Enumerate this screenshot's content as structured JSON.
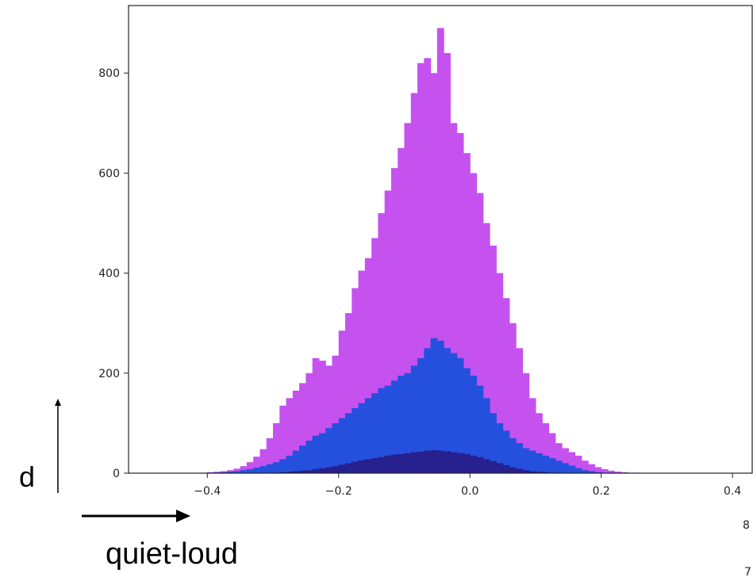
{
  "chart_data": {
    "type": "bar",
    "title": "",
    "xlabel": "",
    "ylabel": "",
    "xlim": [
      -0.52,
      0.43
    ],
    "ylim": [
      0,
      935
    ],
    "x_ticks": [
      {
        "value": -0.4,
        "label": "−0.4"
      },
      {
        "value": -0.2,
        "label": "−0.2"
      },
      {
        "value": 0.0,
        "label": "0.0"
      },
      {
        "value": 0.2,
        "label": "0.2"
      },
      {
        "value": 0.4,
        "label": "0.4"
      }
    ],
    "y_ticks": [
      {
        "value": 0,
        "label": "0"
      },
      {
        "value": 200,
        "label": "200"
      },
      {
        "value": 400,
        "label": "400"
      },
      {
        "value": 600,
        "label": "600"
      },
      {
        "value": 800,
        "label": "800"
      }
    ],
    "grid": false,
    "legend": "none",
    "series": [
      {
        "color": "#c552ef",
        "bin_edges": [
          -0.45,
          -0.44,
          -0.43,
          -0.42,
          -0.41,
          -0.4,
          -0.39,
          -0.38,
          -0.37,
          -0.36,
          -0.35,
          -0.34,
          -0.33,
          -0.32,
          -0.31,
          -0.3,
          -0.29,
          -0.28,
          -0.27,
          -0.26,
          -0.25,
          -0.24,
          -0.23,
          -0.22,
          -0.21,
          -0.2,
          -0.19,
          -0.18,
          -0.17,
          -0.16,
          -0.15,
          -0.14,
          -0.13,
          -0.12,
          -0.11,
          -0.1,
          -0.09,
          -0.08,
          -0.07,
          -0.06,
          -0.05,
          -0.04,
          -0.03,
          -0.02,
          -0.01,
          0.0,
          0.01,
          0.02,
          0.03,
          0.04,
          0.05,
          0.06,
          0.07,
          0.08,
          0.09,
          0.1,
          0.11,
          0.12,
          0.13,
          0.14,
          0.15,
          0.16,
          0.17,
          0.18,
          0.19,
          0.2,
          0.21,
          0.22,
          0.23,
          0.24,
          0.25,
          0.26,
          0.27,
          0.28,
          0.29,
          0.3,
          0.31,
          0.32,
          0.33,
          0.34,
          0.35
        ],
        "values": [
          0,
          0,
          0,
          0,
          1,
          2,
          3,
          4,
          6,
          9,
          14,
          22,
          33,
          48,
          70,
          100,
          135,
          150,
          165,
          180,
          200,
          230,
          225,
          215,
          235,
          285,
          320,
          370,
          405,
          430,
          470,
          520,
          565,
          610,
          650,
          700,
          760,
          820,
          830,
          800,
          890,
          840,
          700,
          680,
          640,
          600,
          560,
          500,
          455,
          400,
          350,
          300,
          250,
          200,
          150,
          120,
          100,
          80,
          60,
          50,
          42,
          35,
          25,
          18,
          12,
          8,
          5,
          3,
          2,
          1,
          1,
          0,
          0,
          0,
          0,
          0,
          0,
          0,
          0,
          0
        ]
      },
      {
        "color": "#2550de",
        "bin_edges": [
          -0.45,
          -0.44,
          -0.43,
          -0.42,
          -0.41,
          -0.4,
          -0.39,
          -0.38,
          -0.37,
          -0.36,
          -0.35,
          -0.34,
          -0.33,
          -0.32,
          -0.31,
          -0.3,
          -0.29,
          -0.28,
          -0.27,
          -0.26,
          -0.25,
          -0.24,
          -0.23,
          -0.22,
          -0.21,
          -0.2,
          -0.19,
          -0.18,
          -0.17,
          -0.16,
          -0.15,
          -0.14,
          -0.13,
          -0.12,
          -0.11,
          -0.1,
          -0.09,
          -0.08,
          -0.07,
          -0.06,
          -0.05,
          -0.04,
          -0.03,
          -0.02,
          -0.01,
          0.0,
          0.01,
          0.02,
          0.03,
          0.04,
          0.05,
          0.06,
          0.07,
          0.08,
          0.09,
          0.1,
          0.11,
          0.12,
          0.13,
          0.14,
          0.15,
          0.16,
          0.17,
          0.18,
          0.19,
          0.2,
          0.21,
          0.22,
          0.23,
          0.24,
          0.25,
          0.26,
          0.27,
          0.28,
          0.29,
          0.3,
          0.31,
          0.32,
          0.33,
          0.34,
          0.35
        ],
        "values": [
          0,
          0,
          0,
          0,
          0,
          1,
          1,
          2,
          3,
          4,
          6,
          8,
          11,
          14,
          18,
          22,
          28,
          35,
          45,
          55,
          65,
          75,
          80,
          90,
          100,
          110,
          120,
          130,
          140,
          150,
          160,
          170,
          175,
          185,
          195,
          200,
          215,
          230,
          250,
          270,
          265,
          250,
          240,
          230,
          210,
          195,
          175,
          150,
          120,
          100,
          85,
          70,
          60,
          50,
          45,
          40,
          35,
          30,
          25,
          20,
          15,
          10,
          6,
          4,
          2,
          1,
          1,
          0,
          0,
          0,
          0,
          0,
          0,
          0,
          0,
          0,
          0,
          0,
          0,
          0
        ]
      },
      {
        "color": "#27208f",
        "bin_edges": [
          -0.45,
          -0.44,
          -0.43,
          -0.42,
          -0.41,
          -0.4,
          -0.39,
          -0.38,
          -0.37,
          -0.36,
          -0.35,
          -0.34,
          -0.33,
          -0.32,
          -0.31,
          -0.3,
          -0.29,
          -0.28,
          -0.27,
          -0.26,
          -0.25,
          -0.24,
          -0.23,
          -0.22,
          -0.21,
          -0.2,
          -0.19,
          -0.18,
          -0.17,
          -0.16,
          -0.15,
          -0.14,
          -0.13,
          -0.12,
          -0.11,
          -0.1,
          -0.09,
          -0.08,
          -0.07,
          -0.06,
          -0.05,
          -0.04,
          -0.03,
          -0.02,
          -0.01,
          0.0,
          0.01,
          0.02,
          0.03,
          0.04,
          0.05,
          0.06,
          0.07,
          0.08,
          0.09,
          0.1,
          0.11,
          0.12,
          0.13,
          0.14,
          0.15,
          0.16,
          0.17,
          0.18,
          0.19,
          0.2,
          0.21,
          0.22,
          0.23,
          0.24,
          0.25,
          0.26,
          0.27,
          0.28,
          0.29,
          0.3,
          0.31,
          0.32,
          0.33,
          0.34,
          0.35
        ],
        "values": [
          0,
          0,
          0,
          0,
          0,
          0,
          0,
          0,
          0,
          0,
          0,
          0,
          0,
          0,
          1,
          1,
          2,
          3,
          4,
          5,
          6,
          8,
          10,
          12,
          14,
          17,
          20,
          23,
          26,
          28,
          30,
          32,
          35,
          37,
          38,
          40,
          42,
          43,
          45,
          46,
          45,
          44,
          42,
          40,
          38,
          35,
          32,
          28,
          24,
          20,
          16,
          12,
          9,
          6,
          4,
          3,
          2,
          1,
          1,
          0,
          0,
          0,
          0,
          0,
          0,
          0,
          0,
          0,
          0,
          0,
          0,
          0,
          0,
          0,
          0,
          0,
          0,
          0,
          0,
          0
        ]
      }
    ]
  },
  "annotations": {
    "y_arrow_label": "d",
    "x_arrow_label": "quiet-loud",
    "edge_fragments": [
      "8",
      "7"
    ]
  }
}
